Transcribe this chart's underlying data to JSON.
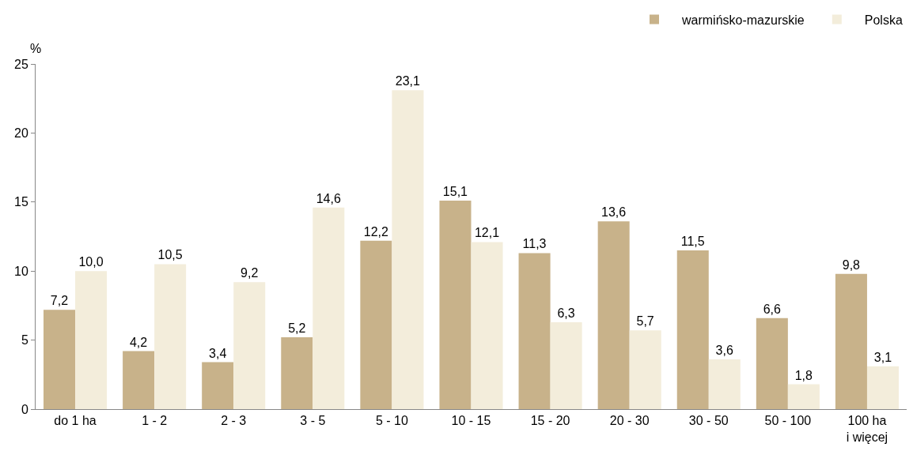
{
  "chart_data": {
    "type": "bar",
    "ylabel": "%",
    "categories": [
      "do 1 ha",
      "1 - 2",
      "2 - 3",
      "3 - 5",
      "5 - 10",
      "10 - 15",
      "15 - 20",
      "20 - 30",
      "30 - 50",
      "50 - 100",
      "100 ha\ni więcej"
    ],
    "series": [
      {
        "name": "warmińsko-mazurskie",
        "color": "#c8b28a",
        "values": [
          7.2,
          4.2,
          3.4,
          5.2,
          12.2,
          15.1,
          11.3,
          13.6,
          11.5,
          6.6,
          9.8
        ],
        "value_labels": [
          "7,2",
          "4,2",
          "3,4",
          "5,2",
          "12,2",
          "15,1",
          "11,3",
          "13,6",
          "11,5",
          "6,6",
          "9,8"
        ]
      },
      {
        "name": "Polska",
        "color": "#f3eddb",
        "values": [
          10.0,
          10.5,
          9.2,
          14.6,
          23.1,
          12.1,
          6.3,
          5.7,
          3.6,
          1.8,
          3.1
        ],
        "value_labels": [
          "10,0",
          "10,5",
          "9,2",
          "14,6",
          "23,1",
          "12,1",
          "6,3",
          "5,7",
          "3,6",
          "1,8",
          "3,1"
        ]
      }
    ],
    "ylim": [
      0,
      25
    ],
    "yticks": [
      0,
      5,
      10,
      15,
      20,
      25
    ],
    "grid": false,
    "legend": "top right"
  }
}
